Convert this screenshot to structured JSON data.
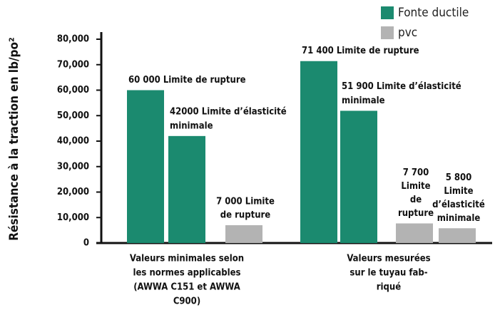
{
  "chart_data": {
    "type": "bar",
    "y_label": "Résistance à la traction en lb/po²",
    "categories": [
      [
        "Valeurs minimales selon",
        "les normes applicables",
        "(AWWA C151 et AWWA",
        "C900)"
      ],
      [
        "Valeurs mesurées",
        "sur le tuyau fab-",
        "riqué"
      ]
    ],
    "series": [
      {
        "name": "Fonte ductile",
        "color": "#1b8a6f"
      },
      {
        "name": "pvc",
        "color": "#b3b3b3"
      }
    ],
    "bars": [
      {
        "category": 0,
        "series": 0,
        "value": 60000,
        "value_label": [
          "60 000 Limite de rupture"
        ]
      },
      {
        "category": 0,
        "series": 0,
        "value": 42000,
        "value_label": [
          "42000 Limite d’élasticité",
          "minimale"
        ]
      },
      {
        "category": 0,
        "series": 1,
        "value": 7000,
        "value_label": [
          "7 000 Limite",
          "de rupture"
        ]
      },
      {
        "category": 1,
        "series": 0,
        "value": 71400,
        "value_label": [
          "71 400 Limite de rupture"
        ]
      },
      {
        "category": 1,
        "series": 0,
        "value": 51900,
        "value_label": [
          "51 900 Limite d’élasticité",
          "minimale"
        ]
      },
      {
        "category": 1,
        "series": 1,
        "value": 7700,
        "value_label": [
          "7 700",
          "Limite",
          "de",
          "rupture"
        ]
      },
      {
        "category": 1,
        "series": 1,
        "value": 5800,
        "value_label": [
          "5 800",
          "Limite",
          "d’élasticité",
          "minimale"
        ]
      }
    ],
    "ylim": [
      0,
      80000
    ],
    "yticks": [
      0,
      {
        "value": 10000,
        "label": "10,000"
      },
      {
        "value": 20000,
        "label": "20,000"
      },
      {
        "value": 30000,
        "label": "30,000"
      },
      {
        "value": 40000,
        "label": "40,000"
      },
      {
        "value": 50000,
        "label": "50,000"
      },
      {
        "value": 60000,
        "label": "60,000"
      },
      {
        "value": 70000,
        "label": "70,000"
      },
      {
        "value": 80000,
        "label": "80,000"
      }
    ]
  }
}
